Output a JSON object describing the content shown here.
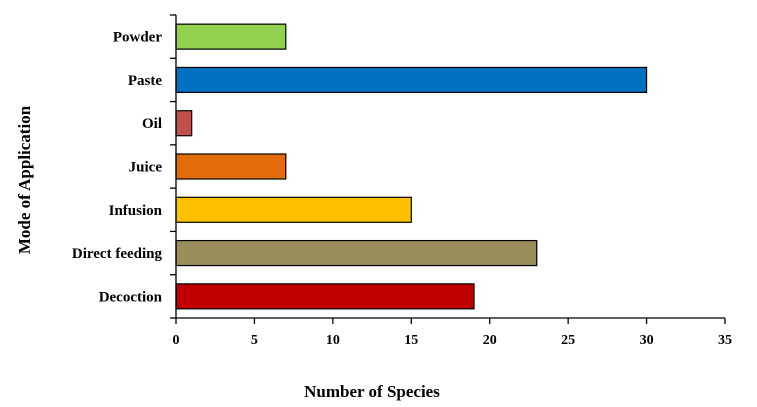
{
  "chart_data": {
    "type": "bar",
    "orientation": "horizontal",
    "title": "",
    "xlabel": "Number of Species",
    "ylabel": "Mode of Application",
    "xlim": [
      0,
      35
    ],
    "xticks": [
      0,
      5,
      10,
      15,
      20,
      25,
      30,
      35
    ],
    "grid": false,
    "legend": "none",
    "categories": [
      "Decoction",
      "Direct feeding",
      "Infusion",
      "Juice",
      "Oil",
      "Paste",
      "Powder"
    ],
    "values": [
      19,
      23,
      15,
      7,
      1,
      30,
      7
    ],
    "colors": [
      "#c00000",
      "#9a8f5a",
      "#ffc000",
      "#e36c0a",
      "#c0504d",
      "#0070c0",
      "#92d050"
    ]
  }
}
